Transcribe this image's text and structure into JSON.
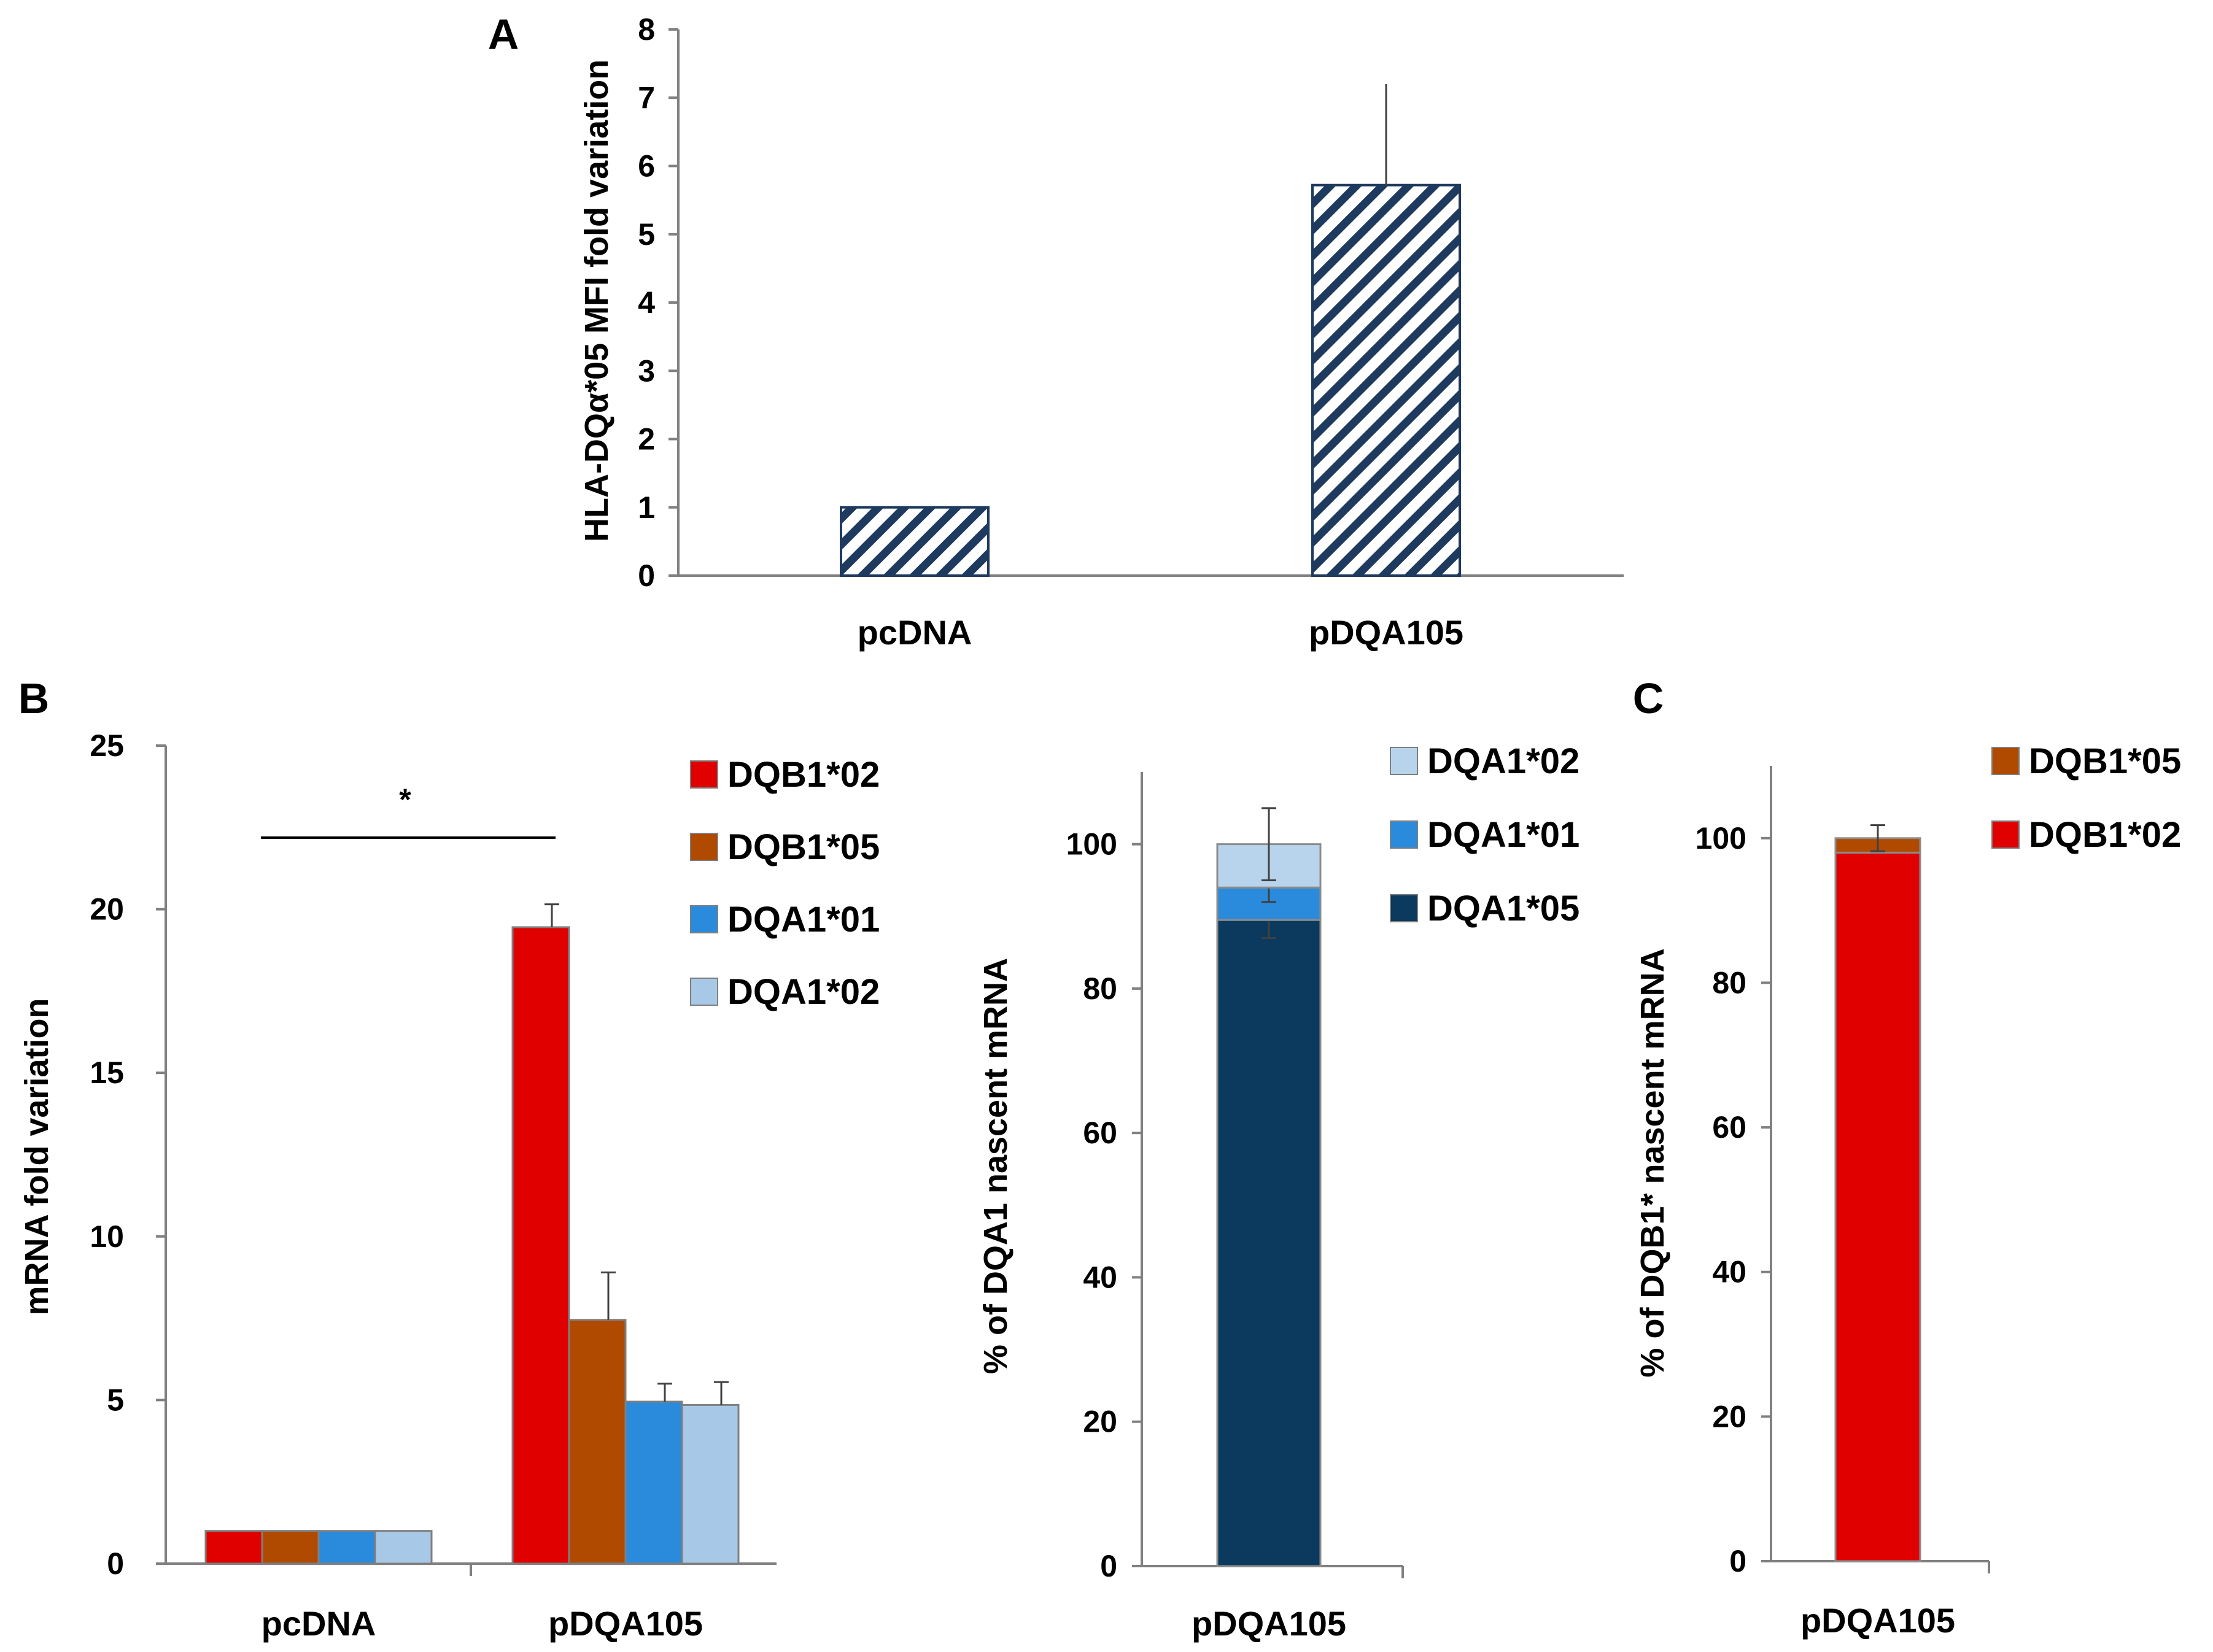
{
  "chart_data": [
    {
      "panel": "A",
      "type": "bar",
      "ylabel": "HLA-DQα*05 MFI fold variation",
      "xlabel": "",
      "ylim": [
        0,
        8
      ],
      "yticks": [
        "0",
        "1",
        "2",
        "3",
        "4",
        "5",
        "6",
        "7",
        "8"
      ],
      "categories": [
        "pcDNA",
        "pDQA105"
      ],
      "values": [
        1.0,
        5.72
      ],
      "errors": [
        0,
        1.48
      ],
      "bar_fill": "hatched",
      "bar_color": "#1f3a5f"
    },
    {
      "panel": "B",
      "type": "bar",
      "ylabel": "mRNA fold variation",
      "ylim": [
        0,
        25
      ],
      "yticks": [
        "0",
        "5",
        "10",
        "15",
        "20",
        "25"
      ],
      "categories": [
        "pcDNA",
        "pDQA105"
      ],
      "significance": "*",
      "series": [
        {
          "name": "DQB1*02",
          "color": "#e00000",
          "values": [
            1.0,
            19.45
          ],
          "errors": [
            0,
            0.7
          ]
        },
        {
          "name": "DQB1*05",
          "color": "#b04a00",
          "values": [
            1.0,
            7.45
          ],
          "errors": [
            0,
            1.45
          ]
        },
        {
          "name": "DQA1*01",
          "color": "#2a8bdc",
          "values": [
            1.0,
            4.95
          ],
          "errors": [
            0,
            0.55
          ]
        },
        {
          "name": "DQA1*02",
          "color": "#a8c8e8",
          "values": [
            1.0,
            4.85
          ],
          "errors": [
            0,
            0.7
          ]
        }
      ]
    },
    {
      "panel": "B",
      "type": "bar",
      "stacked": true,
      "ylabel": "% of DQA1 nascent mRNA",
      "ylim": [
        0,
        110
      ],
      "yticks": [
        "0",
        "20",
        "40",
        "60",
        "80",
        "100"
      ],
      "categories": [
        "pDQA105"
      ],
      "series": [
        {
          "name": "DQA1*05",
          "color": "#0b3a5e",
          "values": [
            89.5
          ],
          "errors": [
            2.5
          ]
        },
        {
          "name": "DQA1*01",
          "color": "#2a8bdc",
          "values": [
            4.5
          ],
          "errors": [
            2.0
          ]
        },
        {
          "name": "DQA1*02",
          "color": "#b8d4ec",
          "values": [
            6.0
          ],
          "errors": [
            5.0
          ]
        }
      ],
      "legend_order": [
        "DQA1*02",
        "DQA1*01",
        "DQA1*05"
      ]
    },
    {
      "panel": "C",
      "type": "bar",
      "stacked": true,
      "ylabel": "% of DQB1* nascent mRNA",
      "ylim": [
        0,
        110
      ],
      "yticks": [
        "0",
        "20",
        "40",
        "60",
        "80",
        "100"
      ],
      "categories": [
        "pDQA105"
      ],
      "series": [
        {
          "name": "DQB1*02",
          "color": "#e00000",
          "values": [
            98.0
          ],
          "errors": [
            0
          ]
        },
        {
          "name": "DQB1*05",
          "color": "#b04a00",
          "values": [
            2.0
          ],
          "errors": [
            1.8
          ]
        }
      ],
      "legend_order": [
        "DQB1*05",
        "DQB1*02"
      ]
    }
  ]
}
